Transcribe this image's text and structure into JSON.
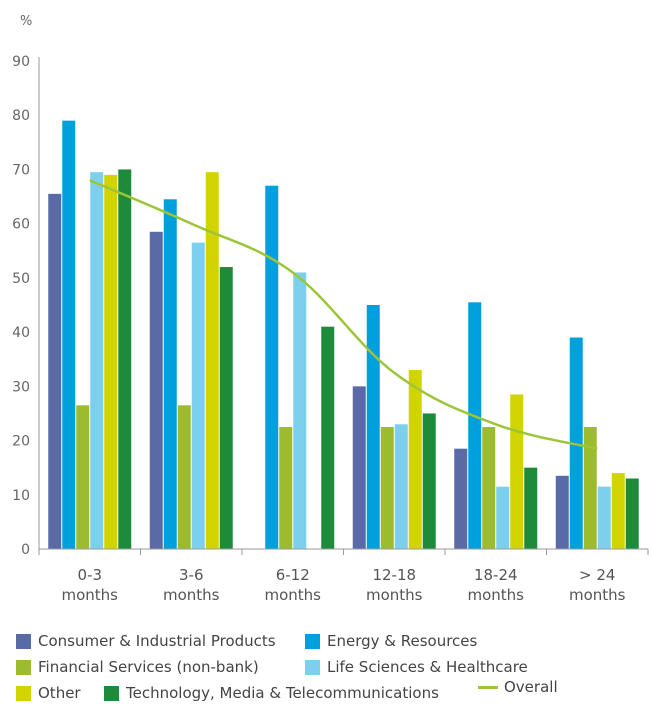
{
  "chart_data": {
    "type": "bar",
    "ylabel": "%",
    "ylim": [
      0,
      90
    ],
    "yticks": [
      0,
      10,
      20,
      30,
      40,
      50,
      60,
      70,
      80,
      90
    ],
    "grid": false,
    "legend_position": "bottom",
    "categories": [
      [
        "0-3",
        "months"
      ],
      [
        "3-6",
        "months"
      ],
      [
        "6-12",
        "months"
      ],
      [
        "12-18",
        "months"
      ],
      [
        "18-24",
        "months"
      ],
      [
        "> 24",
        "months"
      ]
    ],
    "series": [
      {
        "name": "Consumer & Industrial Products",
        "color": "#5a6aa6",
        "values": [
          65.5,
          58.5,
          0,
          30,
          18.5,
          13.5
        ]
      },
      {
        "name": "Energy & Resources",
        "color": "#00a0dc",
        "values": [
          79,
          64.5,
          67,
          45,
          45.5,
          39
        ]
      },
      {
        "name": "Financial Services (non-bank)",
        "color": "#9cbb2e",
        "values": [
          26.5,
          26.5,
          22.5,
          22.5,
          22.5,
          22.5
        ]
      },
      {
        "name": "Life Sciences & Healthcare",
        "color": "#7dcfee",
        "values": [
          69.5,
          56.5,
          51,
          23,
          11.5,
          11.5
        ]
      },
      {
        "name": "Other",
        "color": "#d2d400",
        "values": [
          69,
          69.5,
          0,
          33,
          28.5,
          14
        ]
      },
      {
        "name": "Technology, Media & Telecommunications",
        "color": "#1e8b3a",
        "values": [
          70,
          52,
          41,
          25,
          15,
          13
        ]
      }
    ],
    "line_series": {
      "name": "Overall",
      "color": "#9cc53a",
      "values": [
        68,
        60,
        51,
        32.5,
        23,
        18.5
      ]
    }
  }
}
